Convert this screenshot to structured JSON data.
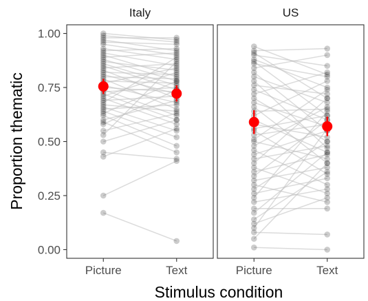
{
  "chart_data": {
    "type": "scatter",
    "xlabel": "Stimulus condition",
    "ylabel": "Proportion thematic",
    "categories": [
      "Picture",
      "Text"
    ],
    "ylim": [
      -0.04,
      1.04
    ],
    "yticks": [
      0.0,
      0.25,
      0.5,
      0.75,
      1.0
    ],
    "ytick_labels": [
      "0.00",
      "0.25",
      "0.50",
      "0.75",
      "1.00"
    ],
    "colors": {
      "points": "#000000",
      "lines": "#bdbdbd",
      "mean": "#ff0000",
      "panel_border": "#333333"
    },
    "panels": [
      {
        "strip": "Italy",
        "mean": {
          "Picture": 0.755,
          "Text": 0.722
        },
        "error": {
          "Picture": [
            0.72,
            0.79
          ],
          "Text": [
            0.685,
            0.76
          ]
        },
        "pairs": [
          [
            1.0,
            0.97
          ],
          [
            0.99,
            0.96
          ],
          [
            0.98,
            0.98
          ],
          [
            0.97,
            0.92
          ],
          [
            0.96,
            0.95
          ],
          [
            0.95,
            0.9
          ],
          [
            0.93,
            0.88
          ],
          [
            0.92,
            0.93
          ],
          [
            0.91,
            0.85
          ],
          [
            0.9,
            0.8
          ],
          [
            0.89,
            0.91
          ],
          [
            0.88,
            0.78
          ],
          [
            0.87,
            0.83
          ],
          [
            0.86,
            0.76
          ],
          [
            0.85,
            0.74
          ],
          [
            0.84,
            0.86
          ],
          [
            0.83,
            0.7
          ],
          [
            0.82,
            0.81
          ],
          [
            0.81,
            0.72
          ],
          [
            0.8,
            0.79
          ],
          [
            0.79,
            0.65
          ],
          [
            0.78,
            0.77
          ],
          [
            0.77,
            0.84
          ],
          [
            0.76,
            0.68
          ],
          [
            0.75,
            0.73
          ],
          [
            0.74,
            0.62
          ],
          [
            0.73,
            0.75
          ],
          [
            0.72,
            0.6
          ],
          [
            0.71,
            0.82
          ],
          [
            0.7,
            0.58
          ],
          [
            0.69,
            0.71
          ],
          [
            0.68,
            0.89
          ],
          [
            0.67,
            0.64
          ],
          [
            0.66,
            0.55
          ],
          [
            0.65,
            0.67
          ],
          [
            0.64,
            0.52
          ],
          [
            0.63,
            0.78
          ],
          [
            0.62,
            0.48
          ],
          [
            0.6,
            0.69
          ],
          [
            0.59,
            0.45
          ],
          [
            0.58,
            0.74
          ],
          [
            0.55,
            0.63
          ],
          [
            0.53,
            0.87
          ],
          [
            0.5,
            0.6
          ],
          [
            0.45,
            0.42
          ],
          [
            0.43,
            0.56
          ],
          [
            0.25,
            0.41
          ],
          [
            0.17,
            0.04
          ]
        ]
      },
      {
        "strip": "US",
        "mean": {
          "Picture": 0.59,
          "Text": 0.57
        },
        "error": {
          "Picture": [
            0.535,
            0.645
          ],
          "Text": [
            0.525,
            0.615
          ]
        },
        "pairs": [
          [
            0.92,
            0.93
          ],
          [
            0.91,
            0.7
          ],
          [
            0.9,
            0.85
          ],
          [
            0.88,
            0.75
          ],
          [
            0.87,
            0.62
          ],
          [
            0.86,
            0.8
          ],
          [
            0.84,
            0.9
          ],
          [
            0.82,
            0.55
          ],
          [
            0.8,
            0.68
          ],
          [
            0.78,
            0.47
          ],
          [
            0.76,
            0.72
          ],
          [
            0.74,
            0.6
          ],
          [
            0.72,
            0.82
          ],
          [
            0.7,
            0.5
          ],
          [
            0.68,
            0.57
          ],
          [
            0.66,
            0.4
          ],
          [
            0.64,
            0.65
          ],
          [
            0.62,
            0.78
          ],
          [
            0.6,
            0.45
          ],
          [
            0.58,
            0.52
          ],
          [
            0.56,
            0.62
          ],
          [
            0.55,
            0.35
          ],
          [
            0.53,
            0.58
          ],
          [
            0.51,
            0.74
          ],
          [
            0.5,
            0.42
          ],
          [
            0.48,
            0.66
          ],
          [
            0.46,
            0.3
          ],
          [
            0.44,
            0.55
          ],
          [
            0.42,
            0.48
          ],
          [
            0.4,
            0.7
          ],
          [
            0.38,
            0.26
          ],
          [
            0.36,
            0.44
          ],
          [
            0.34,
            0.6
          ],
          [
            0.32,
            0.38
          ],
          [
            0.3,
            0.22
          ],
          [
            0.28,
            0.5
          ],
          [
            0.26,
            0.33
          ],
          [
            0.24,
            0.64
          ],
          [
            0.22,
            0.28
          ],
          [
            0.19,
            0.19
          ],
          [
            0.17,
            0.45
          ],
          [
            0.14,
            0.36
          ],
          [
            0.12,
            0.24
          ],
          [
            0.1,
            0.56
          ],
          [
            0.08,
            0.07
          ],
          [
            0.05,
            0.4
          ],
          [
            0.01,
            0.0
          ],
          [
            0.94,
            0.81
          ]
        ]
      }
    ]
  }
}
